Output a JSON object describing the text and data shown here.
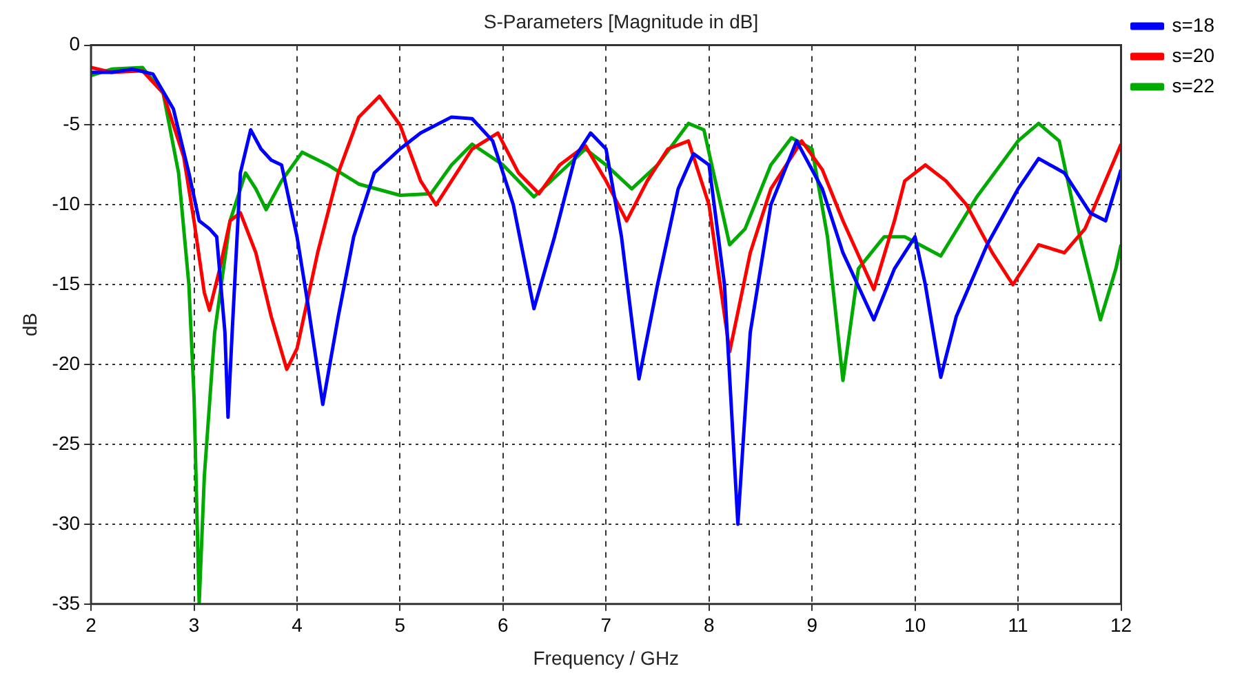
{
  "chart_data": {
    "type": "line",
    "title": "S-Parameters [Magnitude in dB]",
    "xlabel": "Frequency / GHz",
    "ylabel": "dB",
    "xlim": [
      2,
      12
    ],
    "xticks": [
      2,
      3,
      4,
      5,
      6,
      7,
      8,
      9,
      10,
      11,
      12
    ],
    "ylim": [
      -35,
      0
    ],
    "yticks": [
      -35,
      -30,
      -25,
      -20,
      -15,
      -10,
      -5,
      0
    ],
    "grid": true,
    "legend": "top right",
    "marker": "none",
    "line_style": "solid",
    "series": [
      {
        "name": "s=18",
        "color": "#0000ff",
        "x": [
          2.0,
          2.2,
          2.4,
          2.6,
          2.8,
          2.95,
          3.05,
          3.15,
          3.22,
          3.3,
          3.33,
          3.37,
          3.45,
          3.55,
          3.65,
          3.75,
          3.85,
          4.0,
          4.1,
          4.25,
          4.4,
          4.55,
          4.75,
          5.0,
          5.2,
          5.5,
          5.7,
          5.9,
          6.1,
          6.3,
          6.5,
          6.7,
          6.85,
          7.0,
          7.15,
          7.32,
          7.5,
          7.7,
          7.85,
          8.0,
          8.15,
          8.28,
          8.4,
          8.6,
          8.85,
          9.1,
          9.3,
          9.6,
          9.8,
          10.0,
          10.1,
          10.25,
          10.4,
          10.7,
          11.0,
          11.2,
          11.45,
          11.7,
          11.85,
          12.0
        ],
        "values": [
          -1.7,
          -1.7,
          -1.5,
          -1.8,
          -4,
          -8,
          -11,
          -11.5,
          -12,
          -18,
          -23.3,
          -18,
          -8,
          -5.3,
          -6.5,
          -7.2,
          -7.5,
          -12,
          -16,
          -22.5,
          -17,
          -12,
          -8,
          -6.5,
          -5.5,
          -4.5,
          -4.6,
          -6,
          -10,
          -16.5,
          -12,
          -7,
          -5.5,
          -6.5,
          -12,
          -20.9,
          -15,
          -9,
          -6.8,
          -7.5,
          -15,
          -30,
          -18,
          -10,
          -6,
          -9,
          -13,
          -17.2,
          -14,
          -12,
          -15,
          -20.8,
          -17,
          -12.5,
          -9,
          -7.1,
          -8,
          -10.5,
          -11,
          -7.8
        ]
      },
      {
        "name": "s=20",
        "color": "#ff0000",
        "x": [
          2.0,
          2.2,
          2.5,
          2.7,
          2.9,
          3.0,
          3.1,
          3.15,
          3.25,
          3.35,
          3.45,
          3.6,
          3.75,
          3.9,
          4.0,
          4.2,
          4.4,
          4.6,
          4.8,
          5.0,
          5.2,
          5.35,
          5.5,
          5.7,
          5.95,
          6.15,
          6.35,
          6.55,
          6.8,
          7.0,
          7.2,
          7.4,
          7.6,
          7.8,
          8.0,
          8.2,
          8.4,
          8.6,
          8.9,
          9.1,
          9.3,
          9.6,
          9.8,
          9.9,
          10.1,
          10.3,
          10.5,
          10.75,
          10.95,
          11.2,
          11.45,
          11.65,
          12.0
        ],
        "values": [
          -1.4,
          -1.7,
          -1.6,
          -3,
          -7,
          -11,
          -15.5,
          -16.6,
          -14,
          -11,
          -10.5,
          -13,
          -17,
          -20.3,
          -19,
          -13,
          -8,
          -4.5,
          -3.2,
          -5,
          -8.5,
          -10,
          -8.5,
          -6.5,
          -5.5,
          -8,
          -9.3,
          -7.5,
          -6.3,
          -8.5,
          -11,
          -8.5,
          -6.5,
          -6,
          -10,
          -19.2,
          -13,
          -9,
          -6,
          -7.8,
          -11,
          -15.3,
          -11,
          -8.5,
          -7.5,
          -8.5,
          -10,
          -13,
          -15,
          -12.5,
          -13,
          -11.5,
          -6.2
        ]
      },
      {
        "name": "s=22",
        "color": "#00aa00",
        "x": [
          2.0,
          2.2,
          2.5,
          2.7,
          2.85,
          2.95,
          3.0,
          3.05,
          3.1,
          3.2,
          3.35,
          3.5,
          3.6,
          3.7,
          3.85,
          4.05,
          4.3,
          4.6,
          5.0,
          5.3,
          5.5,
          5.7,
          6.0,
          6.3,
          6.5,
          6.8,
          7.0,
          7.25,
          7.5,
          7.8,
          7.95,
          8.2,
          8.35,
          8.6,
          8.8,
          9.0,
          9.15,
          9.3,
          9.45,
          9.7,
          9.9,
          10.25,
          10.6,
          11.0,
          11.2,
          11.4,
          11.6,
          11.8,
          11.95,
          12.0
        ],
        "values": [
          -1.9,
          -1.5,
          -1.4,
          -3,
          -8,
          -15,
          -22,
          -35,
          -27,
          -18,
          -11,
          -8,
          -9,
          -10.3,
          -8.5,
          -6.7,
          -7.5,
          -8.7,
          -9.4,
          -9.3,
          -7.5,
          -6.2,
          -7.5,
          -9.5,
          -8.3,
          -6.5,
          -7.5,
          -9,
          -7.5,
          -4.9,
          -5.3,
          -12.5,
          -11.5,
          -7.5,
          -5.8,
          -6.5,
          -12,
          -21,
          -14,
          -12,
          -12,
          -13.2,
          -9.5,
          -6,
          -4.9,
          -6,
          -12,
          -17.2,
          -14,
          -12.5
        ]
      }
    ]
  }
}
